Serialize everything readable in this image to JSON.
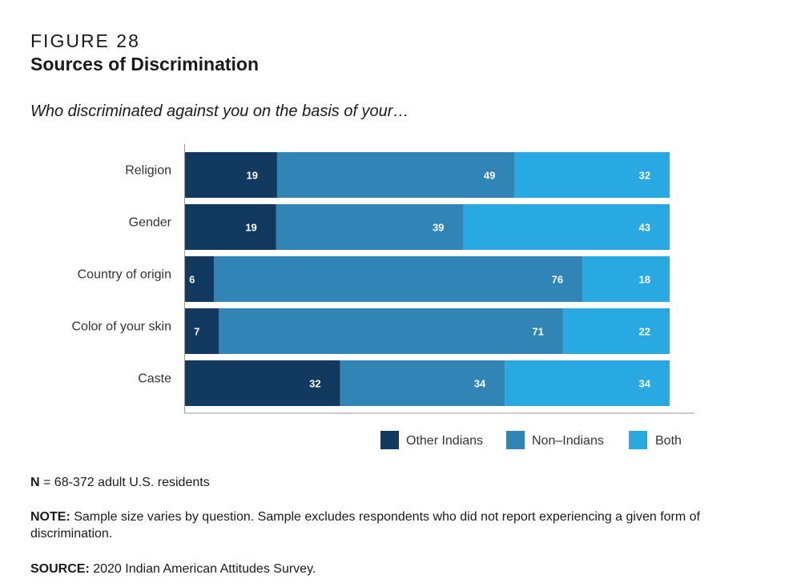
{
  "figure_label": "FIGURE 28",
  "title": "Sources of Discrimination",
  "subtitle": "Who discriminated against you on the basis of your…",
  "colors": {
    "other_indians": "#12395f",
    "non_indians": "#3185b6",
    "both": "#29a9e1"
  },
  "chart_data": {
    "type": "bar",
    "orientation": "horizontal",
    "stacked": true,
    "categories": [
      "Religion",
      "Gender",
      "Country of origin",
      "Color of your skin",
      "Caste"
    ],
    "series": [
      {
        "name": "Other Indians",
        "values": [
          19,
          19,
          6,
          7,
          32
        ]
      },
      {
        "name": "Non–Indians",
        "values": [
          49,
          39,
          76,
          71,
          34
        ]
      },
      {
        "name": "Both",
        "values": [
          32,
          43,
          18,
          22,
          34
        ]
      }
    ],
    "xlim": [
      0,
      100
    ],
    "grid": false,
    "legend_position": "bottom-right"
  },
  "notes": {
    "n_label": "N",
    "n_text": " = 68-372 adult U.S. residents",
    "note_label": "NOTE:",
    "note_text": " Sample size varies by question. Sample excludes respondents who did not report experiencing a given form of discrimination.",
    "source_label": "SOURCE:",
    "source_text": " 2020 Indian American Attitudes Survey."
  }
}
